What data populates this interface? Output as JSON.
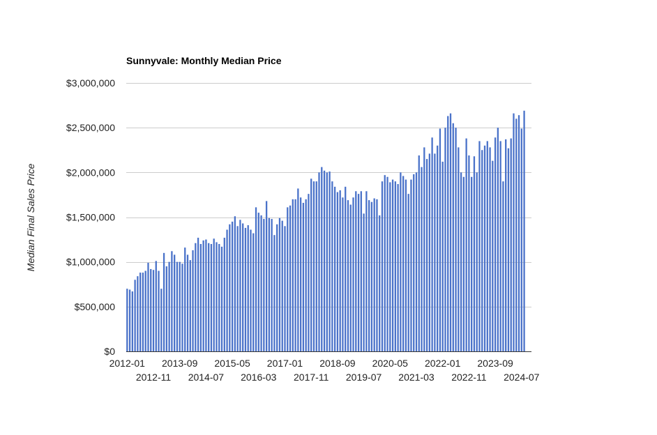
{
  "colors": {
    "bar": "#4a72c9",
    "grid": "#cccccc",
    "baseline": "#333333"
  },
  "chart_data": {
    "type": "bar",
    "title": "Sunnyvale: Monthly Median Price",
    "xlabel": "",
    "ylabel": "Median Final Sales Price",
    "ylim": [
      0,
      3000000
    ],
    "y_ticks": [
      0,
      500000,
      1000000,
      1500000,
      2000000,
      2500000,
      3000000
    ],
    "y_tick_labels": [
      "$0",
      "$500,000",
      "$1,000,000",
      "$1,500,000",
      "$2,000,000",
      "$2,500,000",
      "$3,000,000"
    ],
    "grid": true,
    "legend": "none",
    "x_start": "2012-01",
    "x_ticks_row1": [
      "2012-01",
      "2013-09",
      "2015-05",
      "2017-01",
      "2018-09",
      "2020-05",
      "2022-01",
      "2023-09"
    ],
    "x_ticks_row2": [
      "2012-11",
      "2014-07",
      "2016-03",
      "2017-11",
      "2019-07",
      "2021-03",
      "2022-11",
      "2024-07"
    ],
    "values": [
      700000,
      690000,
      670000,
      800000,
      840000,
      880000,
      880000,
      900000,
      990000,
      920000,
      910000,
      1010000,
      900000,
      700000,
      1100000,
      950000,
      1000000,
      1120000,
      1080000,
      1000000,
      1000000,
      980000,
      1160000,
      1080000,
      1020000,
      1130000,
      1210000,
      1270000,
      1200000,
      1240000,
      1250000,
      1210000,
      1200000,
      1260000,
      1220000,
      1200000,
      1170000,
      1270000,
      1360000,
      1420000,
      1450000,
      1510000,
      1400000,
      1470000,
      1430000,
      1380000,
      1410000,
      1360000,
      1320000,
      1610000,
      1550000,
      1520000,
      1480000,
      1680000,
      1490000,
      1480000,
      1300000,
      1420000,
      1490000,
      1460000,
      1400000,
      1610000,
      1630000,
      1700000,
      1700000,
      1820000,
      1720000,
      1660000,
      1700000,
      1760000,
      1930000,
      1900000,
      1900000,
      2000000,
      2060000,
      2020000,
      2000000,
      2010000,
      1900000,
      1840000,
      1780000,
      1800000,
      1720000,
      1840000,
      1690000,
      1640000,
      1720000,
      1790000,
      1760000,
      1790000,
      1540000,
      1790000,
      1690000,
      1670000,
      1710000,
      1700000,
      1520000,
      1900000,
      1970000,
      1950000,
      1890000,
      1920000,
      1900000,
      1870000,
      2000000,
      1960000,
      1920000,
      1760000,
      1920000,
      1980000,
      2000000,
      2190000,
      2060000,
      2280000,
      2150000,
      2210000,
      2390000,
      2210000,
      2300000,
      2490000,
      2120000,
      2500000,
      2630000,
      2660000,
      2550000,
      2500000,
      2280000,
      2000000,
      1950000,
      2380000,
      2190000,
      1950000,
      2180000,
      2000000,
      2350000,
      2250000,
      2300000,
      2350000,
      2280000,
      2130000,
      2390000,
      2500000,
      2350000,
      1900000,
      2370000,
      2270000,
      2380000,
      2660000,
      2600000,
      2640000,
      2490000,
      2690000
    ]
  }
}
